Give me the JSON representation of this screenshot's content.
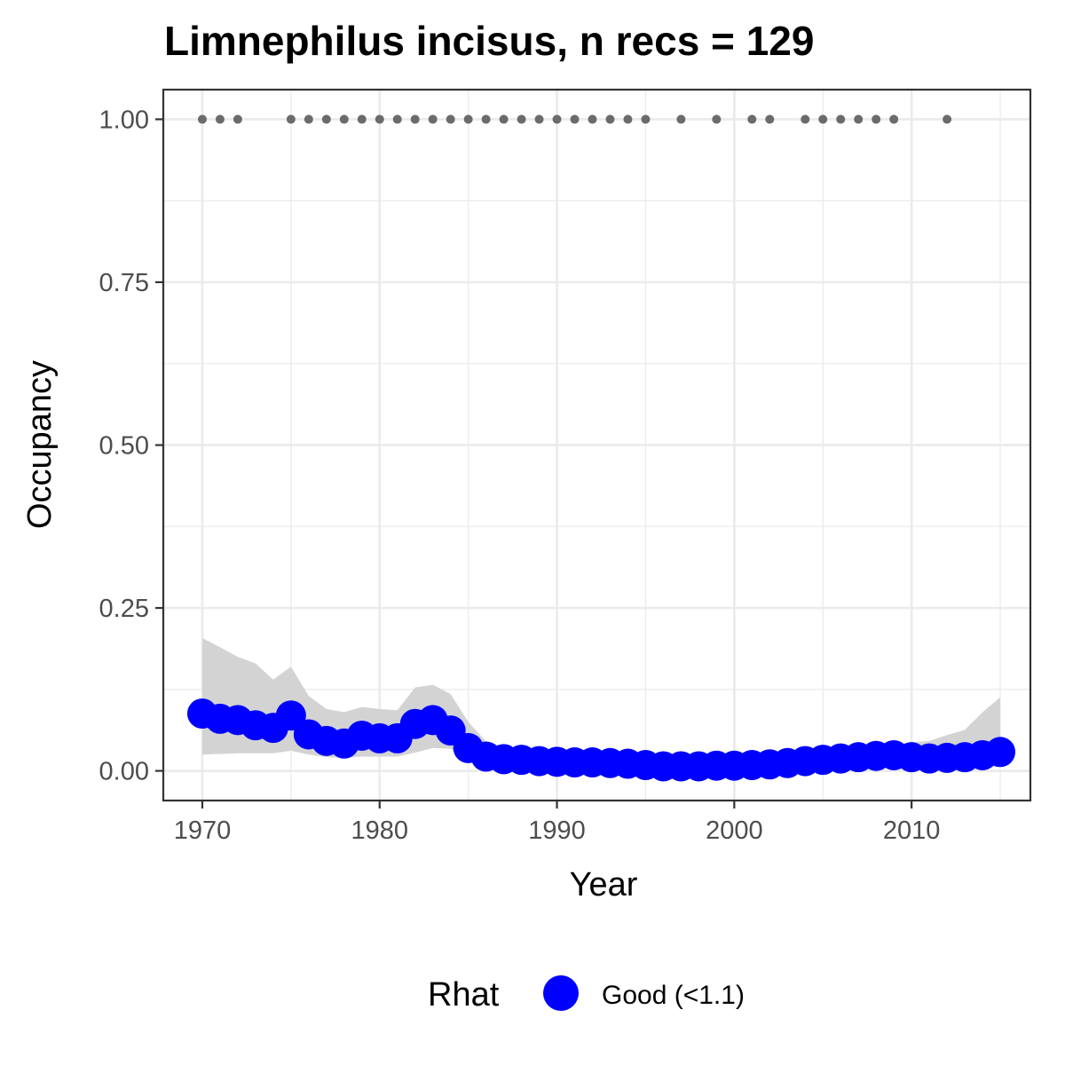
{
  "chart_data": {
    "type": "scatter",
    "title": "Limnephilus incisus, n recs = 129",
    "xlabel": "Year",
    "ylabel": "Occupancy",
    "xlim": [
      1967.8,
      2016.7
    ],
    "ylim": [
      -0.0455,
      1.0455
    ],
    "x_ticks": [
      1970,
      1980,
      1990,
      2000,
      2010
    ],
    "x_tick_labels": [
      "1970",
      "1980",
      "1990",
      "2000",
      "2010"
    ],
    "y_ticks": [
      0,
      0.25,
      0.5,
      0.75,
      1.0
    ],
    "y_tick_labels": [
      "0.00",
      "0.25",
      "0.50",
      "0.75",
      "1.00"
    ],
    "grid": true,
    "legend": {
      "title": "Rhat",
      "position": "bottom",
      "entries": [
        {
          "label": "Good (<1.1)",
          "color": "#0000ff"
        }
      ]
    },
    "colors": {
      "occupancy": "#0000ff",
      "records": "#6b6b6b",
      "ribbon": "#d3d3d3",
      "grid": "#ebebeb",
      "panel_border": "#333333",
      "tick_text": "#4d4d4d"
    },
    "series": [
      {
        "kind": "ribbon",
        "x": [
          1970,
          1971,
          1972,
          1973,
          1974,
          1975,
          1976,
          1977,
          1978,
          1979,
          1980,
          1981,
          1982,
          1983,
          1984,
          1985,
          1986,
          1987,
          1988,
          1989,
          1990,
          1991,
          1992,
          1993,
          1994,
          1995,
          1996,
          1997,
          1998,
          1999,
          2000,
          2001,
          2002,
          2003,
          2004,
          2005,
          2006,
          2007,
          2008,
          2009,
          2010,
          2011,
          2012,
          2013,
          2014,
          2015
        ],
        "lower": [
          0.025,
          0.026,
          0.027,
          0.027,
          0.027,
          0.031,
          0.025,
          0.021,
          0.02,
          0.022,
          0.022,
          0.022,
          0.028,
          0.035,
          0.034,
          0.02,
          0.008,
          0.007,
          0.006,
          0.006,
          0.005,
          0.005,
          0.005,
          0.005,
          0.004,
          0.003,
          0.002,
          0.002,
          0.002,
          0.002,
          0.002,
          0.002,
          0.003,
          0.004,
          0.005,
          0.006,
          0.007,
          0.008,
          0.009,
          0.009,
          0.008,
          0.007,
          0.007,
          0.007,
          0.006,
          0.006
        ],
        "upper": [
          0.204,
          0.19,
          0.175,
          0.165,
          0.14,
          0.16,
          0.115,
          0.095,
          0.09,
          0.098,
          0.095,
          0.093,
          0.128,
          0.132,
          0.118,
          0.075,
          0.045,
          0.038,
          0.035,
          0.032,
          0.03,
          0.028,
          0.027,
          0.026,
          0.024,
          0.022,
          0.02,
          0.019,
          0.019,
          0.019,
          0.02,
          0.02,
          0.021,
          0.022,
          0.025,
          0.028,
          0.031,
          0.035,
          0.038,
          0.041,
          0.044,
          0.046,
          0.055,
          0.063,
          0.09,
          0.113
        ]
      },
      {
        "kind": "points",
        "x": [
          1970,
          1971,
          1972,
          1973,
          1974,
          1975,
          1976,
          1977,
          1978,
          1979,
          1980,
          1981,
          1982,
          1983,
          1984,
          1985,
          1986,
          1987,
          1988,
          1989,
          1990,
          1991,
          1992,
          1993,
          1994,
          1995,
          1996,
          1997,
          1998,
          1999,
          2000,
          2001,
          2002,
          2003,
          2004,
          2005,
          2006,
          2007,
          2008,
          2009,
          2010,
          2011,
          2012,
          2013,
          2014,
          2015
        ],
        "y": [
          0.088,
          0.08,
          0.078,
          0.07,
          0.066,
          0.085,
          0.056,
          0.046,
          0.042,
          0.054,
          0.05,
          0.05,
          0.072,
          0.078,
          0.062,
          0.035,
          0.022,
          0.018,
          0.017,
          0.015,
          0.014,
          0.013,
          0.013,
          0.012,
          0.011,
          0.009,
          0.007,
          0.007,
          0.007,
          0.008,
          0.008,
          0.009,
          0.01,
          0.012,
          0.015,
          0.017,
          0.019,
          0.021,
          0.023,
          0.024,
          0.021,
          0.019,
          0.02,
          0.021,
          0.024,
          0.029
        ]
      },
      {
        "kind": "records",
        "x": [
          1970,
          1971,
          1972,
          1975,
          1976,
          1977,
          1978,
          1979,
          1980,
          1981,
          1982,
          1983,
          1984,
          1985,
          1986,
          1987,
          1988,
          1989,
          1990,
          1991,
          1992,
          1993,
          1994,
          1995,
          1997,
          1999,
          2001,
          2002,
          2004,
          2005,
          2006,
          2007,
          2008,
          2009,
          2012
        ],
        "y": [
          1,
          1,
          1,
          1,
          1,
          1,
          1,
          1,
          1,
          1,
          1,
          1,
          1,
          1,
          1,
          1,
          1,
          1,
          1,
          1,
          1,
          1,
          1,
          1,
          1,
          1,
          1,
          1,
          1,
          1,
          1,
          1,
          1,
          1,
          1
        ]
      }
    ]
  }
}
